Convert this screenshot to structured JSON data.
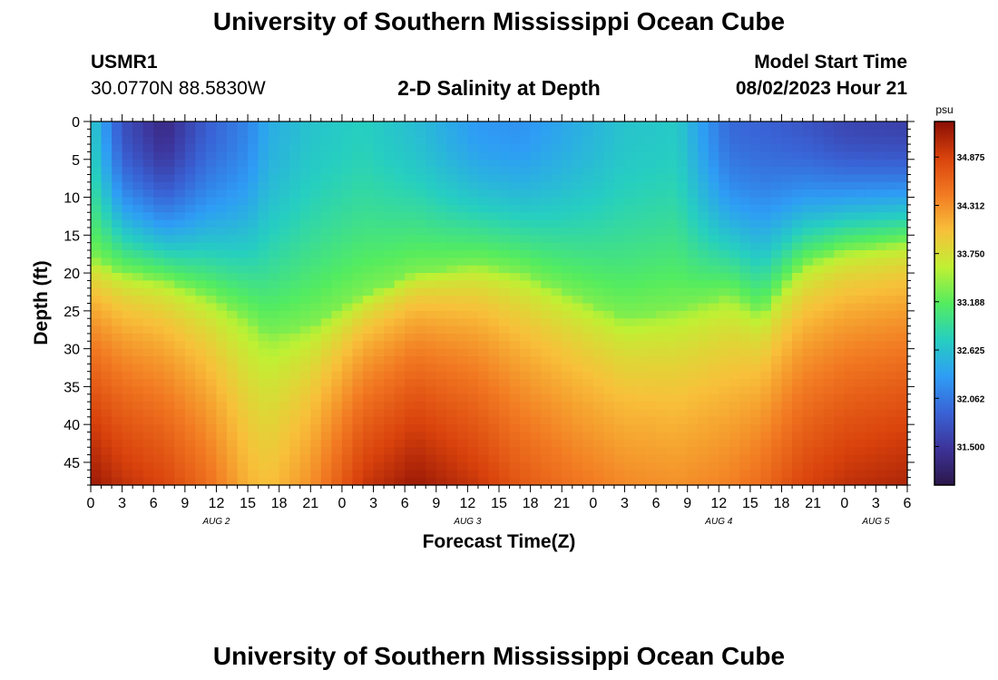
{
  "chart_data": {
    "type": "heatmap",
    "title": "University of Southern Mississippi Ocean Cube",
    "footer_title": "University of Southern Mississippi Ocean Cube",
    "station": {
      "id": "USMR1",
      "coords": "30.0770N  88.5830W"
    },
    "subtitle": "2-D Salinity at Depth",
    "model_start": {
      "label": "Model Start Time",
      "value": "08/02/2023 Hour 21"
    },
    "xlabel": "Forecast Time(Z)",
    "ylabel": "Depth (ft)",
    "x_range_hours": [
      0,
      78
    ],
    "y_range_ft": [
      0,
      48
    ],
    "x_ticks": [
      {
        "hour": 0,
        "label": "0"
      },
      {
        "hour": 3,
        "label": "3"
      },
      {
        "hour": 6,
        "label": "6"
      },
      {
        "hour": 9,
        "label": "9"
      },
      {
        "hour": 12,
        "label": "12"
      },
      {
        "hour": 15,
        "label": "15"
      },
      {
        "hour": 18,
        "label": "18"
      },
      {
        "hour": 21,
        "label": "21"
      },
      {
        "hour": 24,
        "label": "0"
      },
      {
        "hour": 27,
        "label": "3"
      },
      {
        "hour": 30,
        "label": "6"
      },
      {
        "hour": 33,
        "label": "9"
      },
      {
        "hour": 36,
        "label": "12"
      },
      {
        "hour": 39,
        "label": "15"
      },
      {
        "hour": 42,
        "label": "18"
      },
      {
        "hour": 45,
        "label": "21"
      },
      {
        "hour": 48,
        "label": "0"
      },
      {
        "hour": 51,
        "label": "3"
      },
      {
        "hour": 54,
        "label": "6"
      },
      {
        "hour": 57,
        "label": "9"
      },
      {
        "hour": 60,
        "label": "12"
      },
      {
        "hour": 63,
        "label": "15"
      },
      {
        "hour": 66,
        "label": "18"
      },
      {
        "hour": 69,
        "label": "21"
      },
      {
        "hour": 72,
        "label": "0"
      },
      {
        "hour": 75,
        "label": "3"
      },
      {
        "hour": 78,
        "label": "6"
      }
    ],
    "date_labels": [
      {
        "hour": 12,
        "label": "AUG 2"
      },
      {
        "hour": 36,
        "label": "AUG 3"
      },
      {
        "hour": 60,
        "label": "AUG 4"
      },
      {
        "hour": 75,
        "label": "AUG 5"
      }
    ],
    "y_ticks": [
      0,
      5,
      10,
      15,
      20,
      25,
      30,
      35,
      40,
      45
    ],
    "colorbar": {
      "unit": "psu",
      "min": 31.05,
      "max": 35.29,
      "tick_labels": [
        "34.875",
        "34.312",
        "33.750",
        "33.188",
        "32.625",
        "32.062",
        "31.500"
      ],
      "stops": [
        "#2b1749",
        "#3d3399",
        "#3963d6",
        "#2e9df5",
        "#26cfc0",
        "#54ec5f",
        "#c0f033",
        "#f8c03a",
        "#f27a22",
        "#d9420c",
        "#8a0e05"
      ]
    },
    "salinity_model": {
      "description": "approximate salinity field: surface salinity (psu) and fresh-layer thickness (ft) vs forecast hour",
      "hours": [
        0,
        3,
        7,
        11,
        15,
        17,
        21,
        26,
        31,
        37,
        41,
        46,
        51,
        56,
        61,
        64,
        66,
        68,
        72,
        78
      ],
      "surface_psu": [
        32.75,
        31.75,
        31.35,
        31.85,
        32.15,
        32.45,
        32.65,
        32.75,
        32.6,
        32.3,
        32.25,
        32.45,
        32.65,
        32.7,
        31.95,
        31.9,
        31.85,
        31.8,
        31.65,
        31.6
      ],
      "layer_depth_ft": [
        18.0,
        20.0,
        21.0,
        23.0,
        26.0,
        28.5,
        27.0,
        23.0,
        20.0,
        19.0,
        20.0,
        23.0,
        26.0,
        25.0,
        23.0,
        25.5,
        22.0,
        19.0,
        17.0,
        16.0
      ],
      "bottom_psu": [
        35.2,
        35.0,
        34.85,
        34.55,
        34.1,
        34.0,
        34.3,
        34.95,
        35.2,
        34.95,
        34.7,
        34.5,
        34.35,
        34.3,
        34.4,
        34.55,
        34.7,
        34.85,
        35.0,
        35.1
      ]
    }
  }
}
